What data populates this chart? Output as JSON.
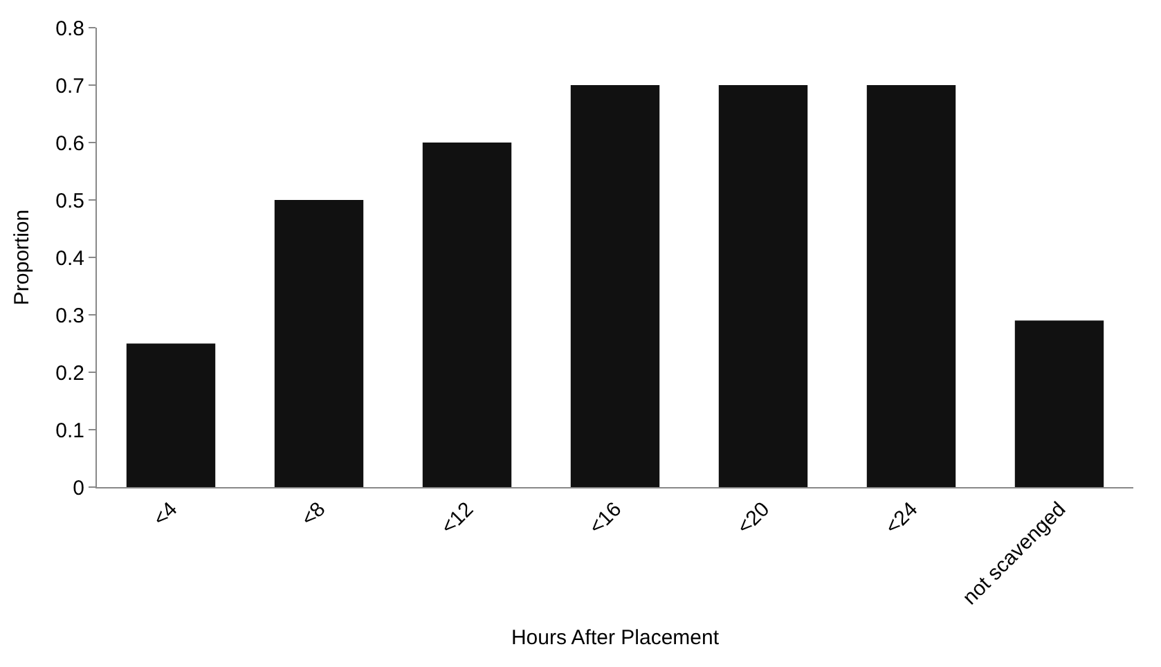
{
  "chart_data": {
    "type": "bar",
    "xlabel": "Hours After Placement",
    "ylabel": "Proportion",
    "categories": [
      "<4",
      "<8",
      "<12",
      "<16",
      "<20",
      "<24",
      "not scavenged"
    ],
    "values": [
      0.25,
      0.5,
      0.6,
      0.7,
      0.7,
      0.7,
      0.29
    ],
    "color": "#111111",
    "ylim": [
      0,
      0.8
    ],
    "yticks": [
      0,
      0.1,
      0.2,
      0.3,
      0.4,
      0.5,
      0.6,
      0.7,
      0.8
    ]
  }
}
